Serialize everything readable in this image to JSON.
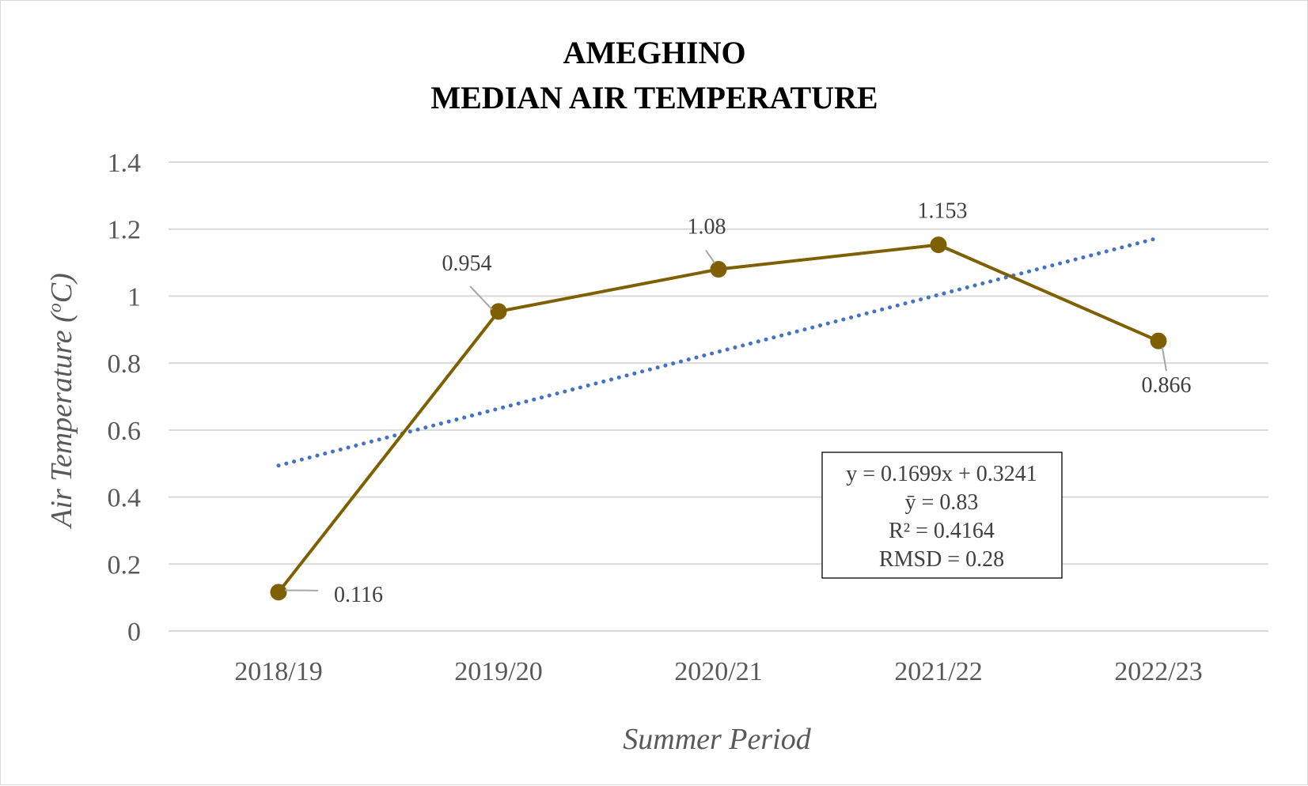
{
  "chart_data": {
    "type": "line",
    "title_lines": [
      "AMEGHINO",
      "MEDIAN AIR TEMPERATURE"
    ],
    "xlabel": "Summer Period",
    "ylabel_main": "Air Temperature (",
    "ylabel_sup": "o",
    "ylabel_unit": "C)",
    "categories": [
      "2018/19",
      "2019/20",
      "2020/21",
      "2021/22",
      "2022/23"
    ],
    "series": [
      {
        "values": [
          0.116,
          0.954,
          1.08,
          1.153,
          0.866
        ],
        "data_labels": [
          "0.116",
          "0.954",
          "1.08",
          "1.153",
          "0.866"
        ],
        "color": "#7f6000"
      }
    ],
    "trendline": {
      "type": "linear",
      "slope": 0.1699,
      "intercept": 0.3241,
      "color": "#4472c4",
      "style": "dotted"
    },
    "ylim": [
      0,
      1.4
    ],
    "yticks": [
      "0",
      "0.2",
      "0.4",
      "0.6",
      "0.8",
      "1",
      "1.2",
      "1.4"
    ],
    "grid": true,
    "stats_box": [
      "y = 0.1699x + 0.3241",
      "ȳ = 0.83",
      "R² = 0.4164",
      "RMSD = 0.28"
    ]
  }
}
